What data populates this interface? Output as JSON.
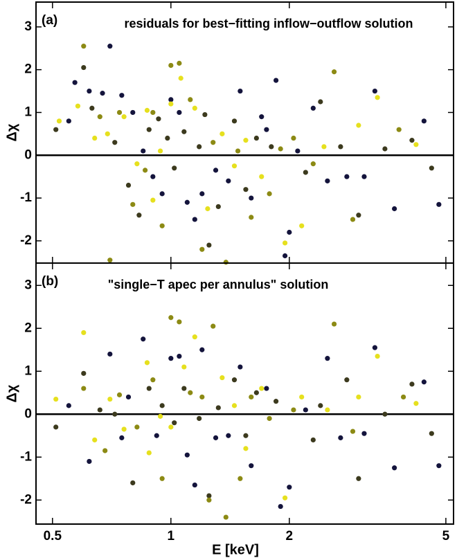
{
  "chart_data": [
    {
      "type": "scatter",
      "panel": "(a)",
      "title": "residuals for best−fitting inflow−outflow solution",
      "ylabel": "Δχ",
      "xlog": true,
      "xlim": [
        0.454,
        5.23
      ],
      "ylim": [
        -2.52,
        3.58
      ],
      "xticks": [
        0.5,
        1,
        2,
        5
      ],
      "yticks": [
        -2,
        -1,
        0,
        1,
        2,
        3
      ],
      "zero_line": true,
      "series": [
        {
          "color": "#14143c",
          "x": [
            0.55,
            0.57,
            0.62,
            0.67,
            0.7,
            0.8,
            0.85,
            0.9,
            0.95,
            1.0,
            1.05,
            1.1,
            1.2,
            1.3,
            1.4,
            1.5,
            1.6,
            1.75,
            1.85,
            1.95,
            2.0,
            2.1,
            2.3,
            2.5,
            2.8,
            3.1,
            3.3,
            3.7,
            4.4,
            4.8,
            0.75,
            1.15,
            1.7
          ],
          "values": [
            0.8,
            1.7,
            1.5,
            1.45,
            2.55,
            1.0,
            0.1,
            -0.5,
            -0.9,
            1.3,
            1.0,
            -1.1,
            -0.9,
            -0.35,
            -0.6,
            1.5,
            -1.0,
            0.6,
            1.75,
            -2.35,
            -1.8,
            0.1,
            1.1,
            -0.6,
            -0.5,
            -0.5,
            1.5,
            -1.25,
            0.8,
            -1.15,
            1.4,
            -1.5,
            0.9
          ]
        },
        {
          "color": "#3c3a1e",
          "x": [
            0.51,
            0.6,
            0.63,
            0.72,
            0.78,
            0.83,
            0.88,
            0.93,
            1.02,
            1.08,
            1.18,
            1.25,
            1.32,
            1.45,
            1.55,
            1.65,
            1.8,
            2.2,
            2.4,
            2.7,
            3.0,
            3.5,
            4.1,
            4.6,
            0.98,
            1.22
          ],
          "values": [
            0.6,
            2.05,
            1.1,
            0.3,
            -0.7,
            -1.4,
            0.6,
            0.85,
            -0.3,
            0.55,
            0.2,
            -2.1,
            -1.2,
            0.8,
            -0.8,
            0.4,
            0.2,
            -0.4,
            1.25,
            0.2,
            -1.4,
            0.15,
            0.35,
            -0.3,
            0.4,
            0.95
          ]
        },
        {
          "color": "#8c8a14",
          "x": [
            0.6,
            0.66,
            0.74,
            0.8,
            0.9,
            1.0,
            1.05,
            1.12,
            1.2,
            1.28,
            1.38,
            1.48,
            1.6,
            1.78,
            1.9,
            2.05,
            2.3,
            2.6,
            2.9,
            3.8,
            0.7,
            0.86,
            0.95
          ],
          "values": [
            2.55,
            0.9,
            1.0,
            -1.15,
            1.0,
            2.1,
            2.15,
            1.3,
            -2.2,
            0.3,
            -2.5,
            0.1,
            -1.45,
            -0.9,
            0.15,
            0.4,
            -0.2,
            1.95,
            -1.5,
            0.6,
            -2.45,
            -0.35,
            -1.65
          ]
        },
        {
          "color": "#e6e01e",
          "x": [
            0.52,
            0.58,
            0.64,
            0.69,
            0.76,
            0.82,
            0.87,
            0.94,
            1.0,
            1.06,
            1.15,
            1.24,
            1.35,
            1.45,
            1.55,
            1.7,
            1.95,
            2.15,
            2.45,
            3.0,
            3.35,
            4.2,
            0.9
          ],
          "values": [
            0.8,
            1.15,
            0.4,
            0.5,
            0.9,
            -0.2,
            1.05,
            0.1,
            1.2,
            1.8,
            1.1,
            -1.25,
            0.5,
            -0.25,
            0.35,
            -0.5,
            -2.05,
            -1.65,
            0.2,
            0.7,
            1.35,
            0.25,
            -1.05
          ]
        }
      ]
    },
    {
      "type": "scatter",
      "panel": "(b)",
      "title": "\"single−T apec per annulus\" solution",
      "ylabel": "Δχ",
      "xlabel": "E [keV]",
      "xlog": true,
      "xlim": [
        0.454,
        5.23
      ],
      "ylim": [
        -2.56,
        3.52
      ],
      "xticks": [
        0.5,
        1,
        2,
        5
      ],
      "yticks": [
        -2,
        -1,
        0,
        1,
        2,
        3
      ],
      "zero_line": true,
      "series": [
        {
          "color": "#14143c",
          "x": [
            0.55,
            0.62,
            0.7,
            0.78,
            0.85,
            0.92,
            1.0,
            1.05,
            1.1,
            1.2,
            1.3,
            1.4,
            1.5,
            1.6,
            1.75,
            1.9,
            2.0,
            2.2,
            2.5,
            2.7,
            3.1,
            3.3,
            3.7,
            4.4,
            4.8,
            0.75,
            1.15
          ],
          "values": [
            0.2,
            -1.1,
            1.4,
            0.4,
            1.75,
            -0.5,
            1.3,
            1.35,
            -0.95,
            1.5,
            -0.55,
            -0.5,
            1.1,
            -1.2,
            0.6,
            -2.15,
            -1.7,
            0.1,
            1.3,
            -0.55,
            -0.45,
            1.55,
            -1.25,
            0.75,
            -1.2,
            -0.55,
            -1.65
          ]
        },
        {
          "color": "#3c3a1e",
          "x": [
            0.51,
            0.6,
            0.66,
            0.72,
            0.8,
            0.88,
            0.95,
            1.02,
            1.08,
            1.25,
            1.32,
            1.45,
            1.55,
            1.65,
            1.85,
            2.3,
            2.4,
            2.8,
            3.0,
            3.5,
            4.1,
            4.6,
            1.18
          ],
          "values": [
            -0.3,
            0.95,
            0.1,
            0.0,
            -1.6,
            0.6,
            0.2,
            -0.2,
            0.6,
            -1.9,
            0.15,
            0.8,
            -0.5,
            0.5,
            0.3,
            -0.6,
            0.2,
            0.8,
            -1.5,
            0.0,
            0.7,
            -0.45,
            -0.1
          ]
        },
        {
          "color": "#8c8a14",
          "x": [
            0.6,
            0.68,
            0.74,
            0.82,
            0.9,
            1.0,
            1.05,
            1.12,
            1.2,
            1.28,
            1.38,
            1.5,
            1.6,
            1.78,
            2.05,
            2.6,
            2.9,
            3.9,
            0.95,
            1.25
          ],
          "values": [
            0.6,
            -0.85,
            0.45,
            -0.3,
            0.8,
            2.25,
            2.15,
            0.5,
            0.4,
            2.05,
            -2.4,
            -1.5,
            0.4,
            -0.1,
            0.1,
            2.1,
            -0.4,
            0.4,
            -1.5,
            -2.0
          ]
        },
        {
          "color": "#e6e01e",
          "x": [
            0.51,
            0.6,
            0.64,
            0.7,
            0.76,
            0.87,
            0.94,
            1.0,
            1.08,
            1.15,
            1.35,
            1.45,
            1.55,
            1.7,
            1.95,
            2.15,
            2.5,
            3.0,
            3.35,
            4.2,
            0.88
          ],
          "values": [
            0.35,
            1.9,
            -0.6,
            0.35,
            -0.35,
            1.2,
            -0.05,
            -0.3,
            1.1,
            1.8,
            0.85,
            0.2,
            -0.8,
            0.6,
            -1.95,
            0.4,
            0.1,
            0.4,
            1.35,
            0.25,
            -0.9
          ]
        }
      ]
    }
  ]
}
